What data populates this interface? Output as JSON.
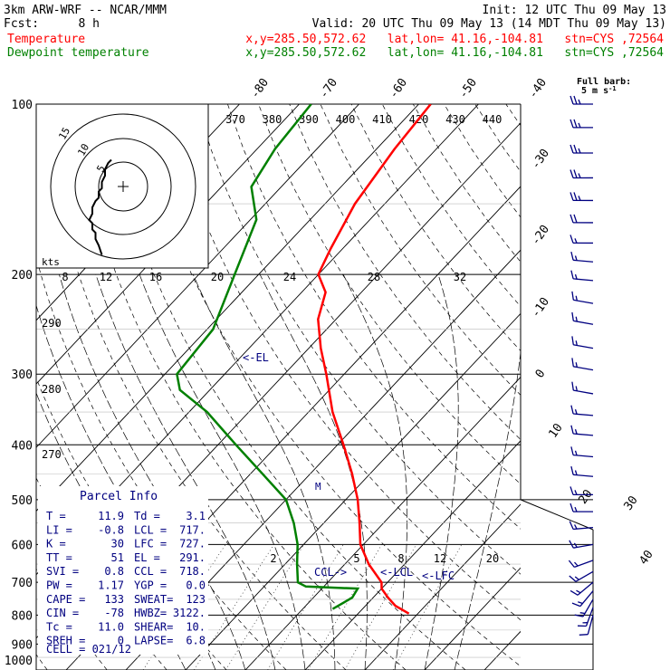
{
  "header": {
    "model": "3km ARW-WRF -- NCAR/MMM",
    "init": "Init: 12 UTC Thu 09 May 13",
    "fcst_label": "Fcst:",
    "fcst_value": "8 h",
    "valid": "Valid: 20 UTC Thu 09 May 13 (14 MDT Thu 09 May 13)"
  },
  "legend": [
    {
      "name": "Temperature",
      "color": "#ff0000",
      "info": "x,y=285.50,572.62   lat,lon= 41.16,-104.81   stn=CYS ,72564"
    },
    {
      "name": "Dewpoint temperature",
      "color": "#008000",
      "info": "x,y=285.50,572.62   lat,lon= 41.16,-104.81   stn=CYS ,72564"
    }
  ],
  "wind_header": {
    "line1": "Full barb:",
    "line2": "5 m s",
    "exp": "-1"
  },
  "hodograph": {
    "ring_labels": [
      "5",
      "10",
      "15"
    ],
    "kts_label": "kts"
  },
  "parcel_info": {
    "title": "Parcel Info",
    "rows": [
      [
        "T  =",
        "11.9",
        "Td =",
        "3.1"
      ],
      [
        "LI =",
        "-0.8",
        "LCL =",
        "717."
      ],
      [
        "K  =",
        "30",
        "LFC =",
        "727."
      ],
      [
        "TT =",
        "51",
        "EL  =",
        "291."
      ],
      [
        "SVI =",
        "0.8",
        "CCL =",
        "718."
      ],
      [
        "PW  =",
        "1.17",
        "YGP =",
        "0.0"
      ],
      [
        "CAPE =",
        "133",
        "SWEAT=",
        "123"
      ],
      [
        "CIN  =",
        "-78",
        "HWBZ=",
        "3122."
      ],
      [
        "Tc   =",
        "11.0",
        "SHEAR=",
        "10."
      ],
      [
        "SREH =",
        "0",
        "LAPSE=",
        "6.8"
      ]
    ],
    "cell_label": "CELL = 021/12"
  },
  "annotations": {
    "el": "<-EL",
    "ccl": "CCL->",
    "lcl": "<-LCL",
    "lfc": "<-LFC",
    "m": "M"
  },
  "colors": {
    "temperature": "#ff0000",
    "dewpoint": "#008000",
    "text": "#000080",
    "wind": "#000080"
  },
  "chart_data": {
    "type": "line",
    "title": "",
    "pressure_levels": [
      100,
      200,
      300,
      400,
      500,
      600,
      700,
      800,
      900,
      1000
    ],
    "isotherm_labels": [
      "-80",
      "-70",
      "-60",
      "-50",
      "-40",
      "-30",
      "-20",
      "-10",
      "0",
      "10",
      "20",
      "30",
      "40"
    ],
    "theta_labels": [
      "370",
      "380",
      "390",
      "400",
      "410",
      "420",
      "430",
      "440"
    ],
    "mixing_ratio_top_labels": [
      "8",
      "12",
      "16",
      "20",
      "24",
      "28",
      "32"
    ],
    "mixing_ratio_low_labels": [
      "2",
      "5",
      "8",
      "12",
      "20"
    ],
    "dry_adiabat_left_labels": [
      "290",
      "280",
      "270"
    ],
    "series": [
      {
        "name": "Temperature",
        "points": [
          [
            795,
            18.5
          ],
          [
            770,
            15
          ],
          [
            745,
            12.5
          ],
          [
            718,
            10
          ],
          [
            700,
            9
          ],
          [
            650,
            4
          ],
          [
            600,
            -0.5
          ],
          [
            550,
            -4
          ],
          [
            500,
            -8
          ],
          [
            450,
            -13
          ],
          [
            400,
            -19
          ],
          [
            350,
            -26
          ],
          [
            300,
            -33
          ],
          [
            270,
            -38
          ],
          [
            240,
            -43
          ],
          [
            215,
            -46
          ],
          [
            200,
            -50
          ],
          [
            180,
            -52
          ],
          [
            150,
            -55
          ],
          [
            120,
            -57
          ],
          [
            100,
            -58
          ]
        ]
      },
      {
        "name": "Dewpoint temperature",
        "points": [
          [
            780,
            5
          ],
          [
            745,
            6.5
          ],
          [
            718,
            6
          ],
          [
            712,
            -3
          ],
          [
            700,
            -5
          ],
          [
            650,
            -8
          ],
          [
            600,
            -11
          ],
          [
            550,
            -15
          ],
          [
            500,
            -20
          ],
          [
            450,
            -28
          ],
          [
            400,
            -37
          ],
          [
            350,
            -47
          ],
          [
            320,
            -55
          ],
          [
            300,
            -58
          ],
          [
            250,
            -59
          ],
          [
            200,
            -64
          ],
          [
            160,
            -69
          ],
          [
            140,
            -75
          ],
          [
            120,
            -77
          ],
          [
            100,
            -78
          ]
        ]
      }
    ],
    "wind_barbs": [
      {
        "p": 100,
        "dir": 270,
        "spd": 25
      },
      {
        "p": 110,
        "dir": 270,
        "spd": 25
      },
      {
        "p": 122,
        "dir": 270,
        "spd": 25
      },
      {
        "p": 135,
        "dir": 270,
        "spd": 25
      },
      {
        "p": 148,
        "dir": 270,
        "spd": 25
      },
      {
        "p": 162,
        "dir": 270,
        "spd": 20
      },
      {
        "p": 176,
        "dir": 270,
        "spd": 15
      },
      {
        "p": 190,
        "dir": 275,
        "spd": 15
      },
      {
        "p": 205,
        "dir": 275,
        "spd": 15
      },
      {
        "p": 225,
        "dir": 280,
        "spd": 15
      },
      {
        "p": 245,
        "dir": 280,
        "spd": 15
      },
      {
        "p": 270,
        "dir": 280,
        "spd": 15
      },
      {
        "p": 295,
        "dir": 280,
        "spd": 15
      },
      {
        "p": 325,
        "dir": 280,
        "spd": 15
      },
      {
        "p": 355,
        "dir": 275,
        "spd": 15
      },
      {
        "p": 385,
        "dir": 275,
        "spd": 15
      },
      {
        "p": 420,
        "dir": 275,
        "spd": 15
      },
      {
        "p": 455,
        "dir": 275,
        "spd": 15
      },
      {
        "p": 490,
        "dir": 270,
        "spd": 15
      },
      {
        "p": 525,
        "dir": 270,
        "spd": 15
      },
      {
        "p": 560,
        "dir": 265,
        "spd": 15
      },
      {
        "p": 600,
        "dir": 260,
        "spd": 15
      },
      {
        "p": 640,
        "dir": 250,
        "spd": 15
      },
      {
        "p": 670,
        "dir": 240,
        "spd": 15
      },
      {
        "p": 700,
        "dir": 230,
        "spd": 15
      },
      {
        "p": 725,
        "dir": 220,
        "spd": 15
      },
      {
        "p": 750,
        "dir": 210,
        "spd": 15
      },
      {
        "p": 775,
        "dir": 200,
        "spd": 15
      },
      {
        "p": 800,
        "dir": 195,
        "spd": 10
      }
    ],
    "hodograph_trace": [
      [
        -1,
        1
      ],
      [
        -2,
        4
      ],
      [
        -3,
        6
      ],
      [
        -3,
        8
      ],
      [
        -4,
        9
      ],
      [
        -4,
        11
      ],
      [
        -5,
        12
      ],
      [
        -4,
        14
      ],
      [
        -4,
        16
      ],
      [
        -3,
        18
      ],
      [
        -2,
        19
      ],
      [
        -2,
        21
      ],
      [
        -1,
        22
      ],
      [
        -1,
        24
      ],
      [
        0,
        26
      ],
      [
        0,
        28
      ],
      [
        1,
        30
      ],
      [
        2,
        31
      ]
    ]
  }
}
